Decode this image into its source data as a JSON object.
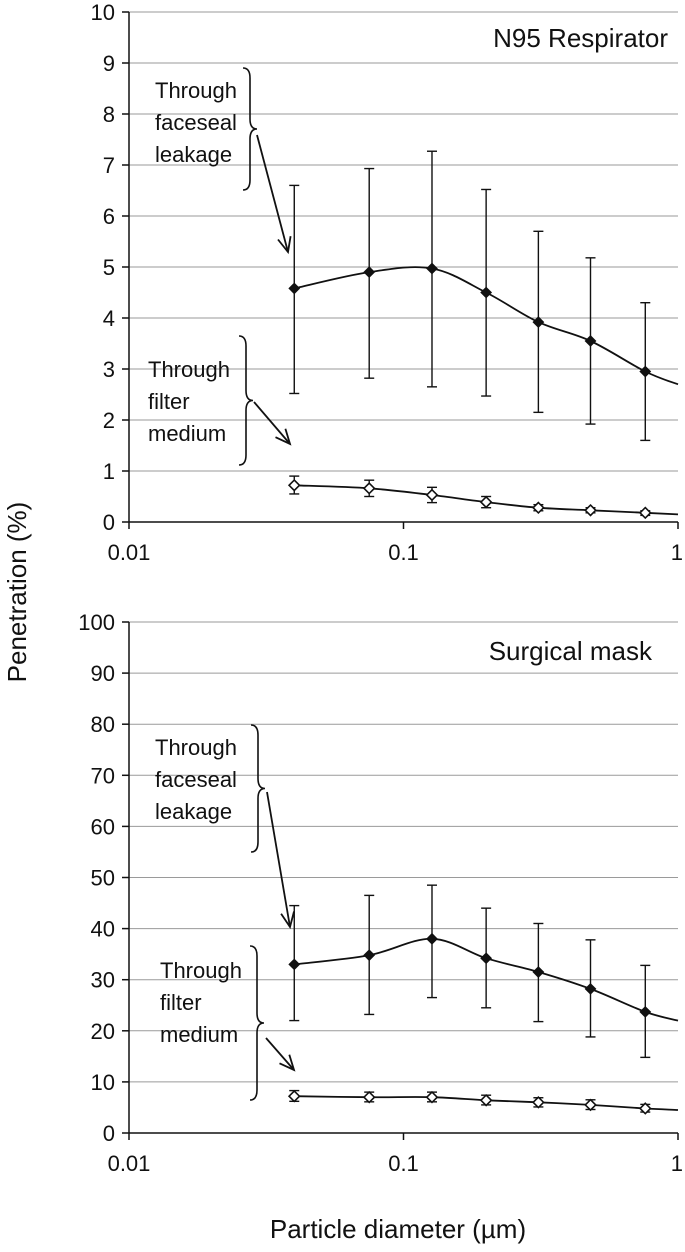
{
  "ylabel": "Penetration (%)",
  "xlabel": "Particle diameter (µm)",
  "chart_data": [
    {
      "type": "line",
      "title": "N95 Respirator",
      "xscale": "log",
      "xlim": [
        0.01,
        1
      ],
      "ylim": [
        0,
        10
      ],
      "xticks": [
        "0.01",
        "0.1",
        "1"
      ],
      "yticks": [
        "0",
        "1",
        "2",
        "3",
        "4",
        "5",
        "6",
        "7",
        "8",
        "9",
        "10"
      ],
      "annotations": [
        {
          "lines": [
            "Through",
            "faceseal",
            "leakage"
          ]
        },
        {
          "lines": [
            "Through",
            "filter",
            "medium"
          ]
        }
      ],
      "x": [
        0.04,
        0.075,
        0.127,
        0.2,
        0.31,
        0.48,
        0.76
      ],
      "series": [
        {
          "marker": "filled-diamond",
          "values": [
            4.58,
            4.9,
            4.97,
            4.5,
            3.92,
            3.55,
            2.95
          ],
          "err_low": [
            2.52,
            2.82,
            2.65,
            2.47,
            2.15,
            1.92,
            1.6
          ],
          "err_high": [
            6.6,
            6.93,
            7.27,
            6.52,
            5.7,
            5.18,
            4.3
          ],
          "end_value": 2.7
        },
        {
          "marker": "open-diamond",
          "values": [
            0.72,
            0.66,
            0.53,
            0.39,
            0.28,
            0.23,
            0.18
          ],
          "err_low": [
            0.55,
            0.5,
            0.38,
            0.28,
            0.22,
            0.18,
            0.13
          ],
          "err_high": [
            0.9,
            0.82,
            0.68,
            0.5,
            0.34,
            0.28,
            0.22
          ],
          "end_value": 0.15
        }
      ]
    },
    {
      "type": "line",
      "title": "Surgical mask",
      "xscale": "log",
      "xlim": [
        0.01,
        1
      ],
      "ylim": [
        0,
        100
      ],
      "xticks": [
        "0.01",
        "0.1",
        "1"
      ],
      "yticks": [
        "0",
        "10",
        "20",
        "30",
        "40",
        "50",
        "60",
        "70",
        "80",
        "90",
        "100"
      ],
      "annotations": [
        {
          "lines": [
            "Through",
            "faceseal",
            "leakage"
          ]
        },
        {
          "lines": [
            "Through",
            "filter",
            "medium"
          ]
        }
      ],
      "x": [
        0.04,
        0.075,
        0.127,
        0.2,
        0.31,
        0.48,
        0.76
      ],
      "series": [
        {
          "marker": "filled-diamond",
          "values": [
            33.0,
            34.8,
            38.0,
            34.2,
            31.5,
            28.2,
            23.7
          ],
          "err_low": [
            22.0,
            23.2,
            26.5,
            24.5,
            21.8,
            18.8,
            14.8
          ],
          "err_high": [
            44.5,
            46.5,
            48.5,
            44.0,
            41.0,
            37.8,
            32.8
          ],
          "end_value": 22.0
        },
        {
          "marker": "open-diamond",
          "values": [
            7.2,
            7.0,
            7.0,
            6.4,
            6.0,
            5.5,
            4.8
          ],
          "err_low": [
            6.2,
            6.1,
            6.1,
            5.5,
            5.1,
            4.6,
            4.1
          ],
          "err_high": [
            8.3,
            8.0,
            8.0,
            7.4,
            6.9,
            6.5,
            5.6
          ],
          "end_value": 4.5
        }
      ]
    }
  ]
}
